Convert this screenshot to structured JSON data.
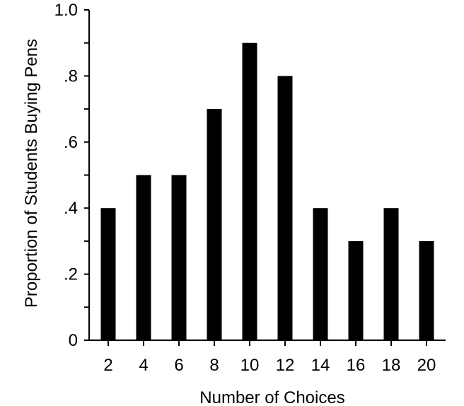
{
  "chart_data": {
    "type": "bar",
    "title": "",
    "xlabel": "Number of Choices",
    "ylabel": "Proportion of Students Buying Pens",
    "categories": [
      "2",
      "4",
      "6",
      "8",
      "10",
      "12",
      "14",
      "16",
      "18",
      "20"
    ],
    "values": [
      0.4,
      0.5,
      0.5,
      0.7,
      0.9,
      0.8,
      0.4,
      0.3,
      0.4,
      0.3
    ],
    "ylim": [
      0,
      1.0
    ],
    "yticks": [
      {
        "value": 0,
        "label": "0"
      },
      {
        "value": 0.2,
        "label": ".2"
      },
      {
        "value": 0.4,
        "label": ".4"
      },
      {
        "value": 0.6,
        "label": ".6"
      },
      {
        "value": 0.8,
        "label": ".8"
      },
      {
        "value": 1.0,
        "label": "1.0"
      }
    ],
    "y_minor_step": 0.1,
    "grid": false,
    "bar_color": "#000000"
  }
}
